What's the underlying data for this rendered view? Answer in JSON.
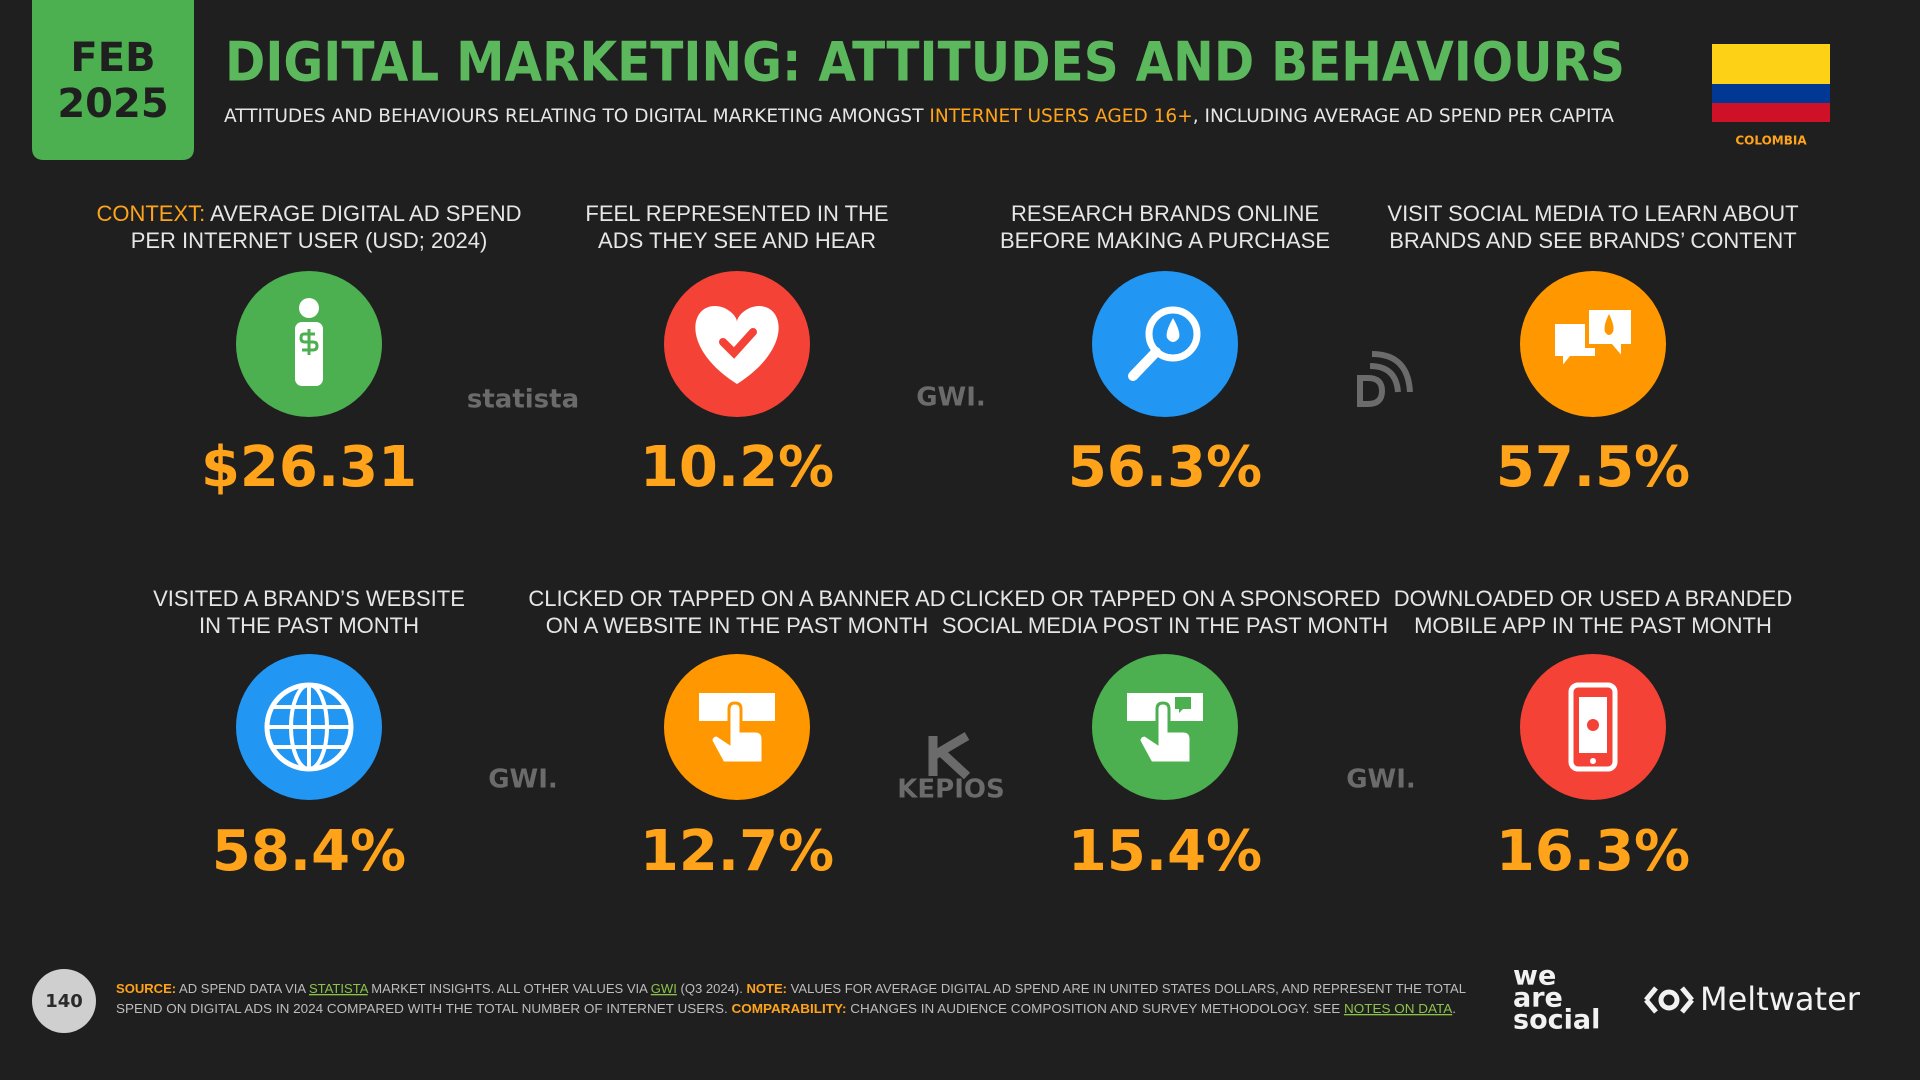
{
  "header": {
    "month": "FEB",
    "year": "2025",
    "title": "DIGITAL MARKETING: ATTITUDES AND BEHAVIOURS",
    "subtitle": [
      "ATTITUDES AND BEHAVIOURS RELATING TO DIGITAL MARKETING AMONGST ",
      "INTERNET USERS AGED 16+",
      ", INCLUDING AVERAGE AD SPEND PER CAPITA"
    ],
    "country": "COLOMBIA"
  },
  "tiles": [
    {
      "prefix": "CONTEXT:",
      "label": [
        " AVERAGE DIGITAL AD SPEND",
        "PER INTERNET USER (USD; 2024)"
      ],
      "value": "$26.31"
    },
    {
      "label": [
        "FEEL REPRESENTED IN THE",
        "ADS THEY SEE AND HEAR"
      ],
      "value": "10.2%"
    },
    {
      "label": [
        "RESEARCH BRANDS ONLINE",
        "BEFORE MAKING A PURCHASE"
      ],
      "value": "56.3%"
    },
    {
      "label": [
        "VISIT SOCIAL MEDIA TO LEARN ABOUT",
        "BRANDS AND SEE BRANDS’ CONTENT"
      ],
      "value": "57.5%"
    },
    {
      "label": [
        "VISITED A BRAND’S WEBSITE",
        "IN THE PAST MONTH"
      ],
      "value": "58.4%"
    },
    {
      "label": [
        "CLICKED OR TAPPED ON A BANNER AD",
        "ON A WEBSITE IN THE PAST MONTH"
      ],
      "value": "12.7%"
    },
    {
      "label": [
        "CLICKED OR TAPPED ON A SPONSORED",
        "SOCIAL MEDIA POST IN THE PAST MONTH"
      ],
      "value": "15.4%"
    },
    {
      "label": [
        "DOWNLOADED OR USED A BRANDED",
        "MOBILE APP IN THE PAST MONTH"
      ],
      "value": "16.3%"
    }
  ],
  "sources": [
    "statista",
    "GWI.",
    "GWI.",
    "KEPIOS",
    "GWI."
  ],
  "footer": {
    "page": "140",
    "source_label": "SOURCE:",
    "source_1": " AD SPEND DATA VIA ",
    "source_link_1": "STATISTA",
    "source_2": " MARKET INSIGHTS. ALL OTHER VALUES VIA ",
    "source_link_2": "GWI",
    "source_3": " (Q3 2024). ",
    "note_label": "NOTE:",
    "note_1": " VALUES FOR AVERAGE DIGITAL AD SPEND ARE IN UNITED STATES DOLLARS, AND REPRESENT THE TOTAL",
    "note_2": "SPEND ON DIGITAL ADS IN 2024 COMPARED WITH THE TOTAL NUMBER OF INTERNET USERS. ",
    "comparability_label": "COMPARABILITY:",
    "comparability": " CHANGES IN AUDIENCE COMPOSITION AND SURVEY METHODOLOGY. SEE ",
    "notes_link": "NOTES ON DATA",
    "end": ".",
    "brand_1": [
      "we",
      "are",
      "social"
    ],
    "brand_2": "Meltwater"
  }
}
